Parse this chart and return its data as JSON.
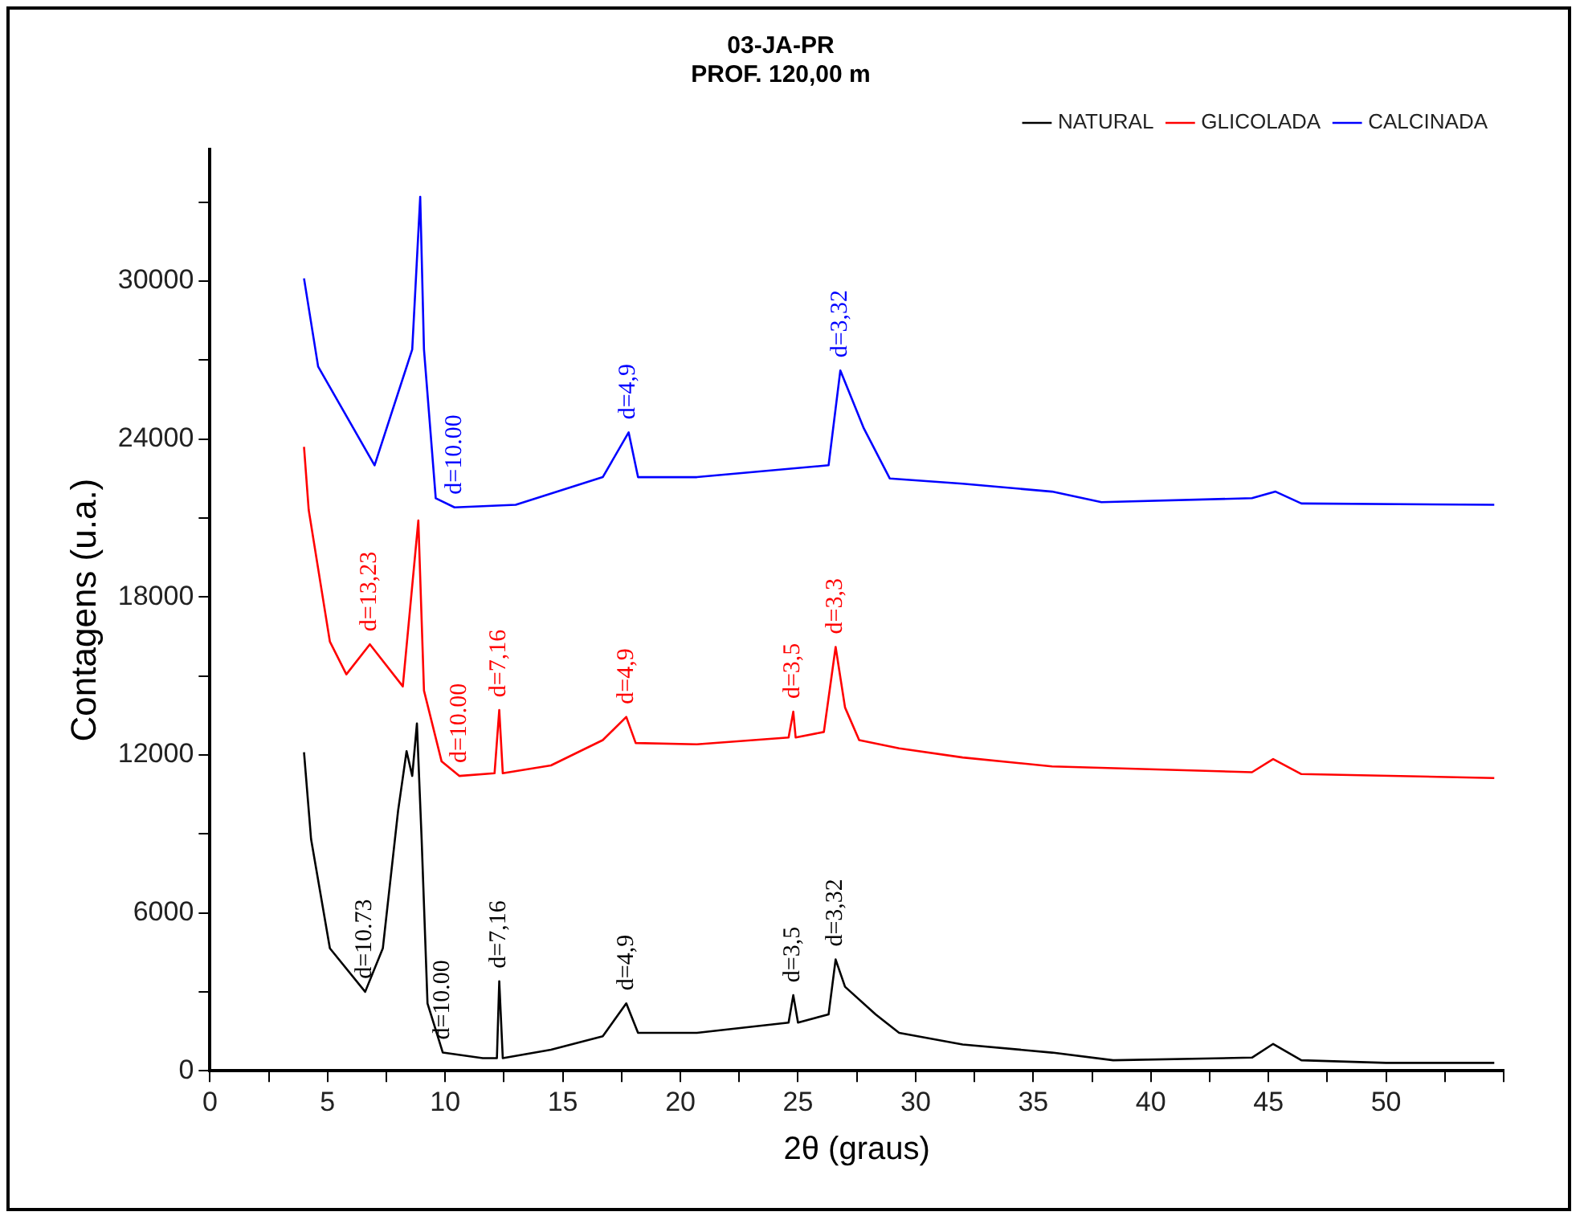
{
  "chart_data": {
    "type": "line",
    "title": "03-JA-PR\nPROF. 120,00 m",
    "xlabel": "2θ (graus)",
    "ylabel": "Contagens (u.a.)",
    "xlim": [
      0,
      55
    ],
    "xticks": [
      0,
      {
        "value": 2.5,
        "label": null
      },
      5,
      {
        "value": 7.5,
        "label": null
      },
      10,
      {
        "value": 12.5,
        "label": null
      },
      15,
      {
        "value": 17.5,
        "label": null
      },
      20,
      {
        "value": 22.5,
        "label": null
      },
      25,
      {
        "value": 27.5,
        "label": null
      },
      30,
      {
        "value": 32.5,
        "label": null
      },
      35,
      {
        "value": 37.5,
        "label": null
      },
      40,
      {
        "value": 42.5,
        "label": null
      },
      45,
      {
        "value": 47.5,
        "label": null
      },
      50,
      {
        "value": 52.5,
        "label": null
      },
      {
        "value": 55,
        "label": null
      }
    ],
    "ylim": [
      0,
      35000
    ],
    "yticks": [
      0,
      {
        "value": 3000,
        "label": null
      },
      6000,
      {
        "value": 9000,
        "label": null
      },
      12000,
      {
        "value": 15000,
        "label": null
      },
      18000,
      {
        "value": 21000,
        "label": null
      },
      24000,
      {
        "value": 27000,
        "label": null
      },
      30000,
      {
        "value": 33000,
        "label": null
      }
    ],
    "legend": "top right",
    "marker": "none",
    "line_style": "solid",
    "series": [
      {
        "name": "NATURAL",
        "color": "#000000",
        "x": [
          4.0,
          4.3,
          5.1,
          6.6,
          7.35,
          8.0,
          8.36,
          8.6,
          8.8,
          9.0,
          9.25,
          9.9,
          11.6,
          12.2,
          12.3,
          12.45,
          14.5,
          16.7,
          17.7,
          18.2,
          20.7,
          24.6,
          24.8,
          25.0,
          26.3,
          26.6,
          27.0,
          28.3,
          29.3,
          32,
          35.8,
          38.4,
          44.3,
          45.2,
          46.4,
          50,
          54.6
        ],
        "values": [
          12100,
          8800,
          4650,
          3000,
          4650,
          9880,
          12140,
          11200,
          13190,
          8800,
          2560,
          690,
          480,
          480,
          3400,
          480,
          800,
          1310,
          2560,
          1440,
          1440,
          1830,
          2870,
          1830,
          2140,
          4230,
          3190,
          2140,
          1440,
          1000,
          690,
          400,
          500,
          1020,
          400,
          300,
          300
        ]
      },
      {
        "name": "GLICOLADA",
        "color": "#ff0000",
        "x": [
          4.0,
          4.2,
          5.1,
          5.8,
          6.8,
          8.2,
          8.86,
          9.1,
          9.85,
          10.6,
          12.1,
          12.3,
          12.45,
          14.5,
          16.7,
          17.7,
          18.1,
          20.7,
          24.6,
          24.8,
          24.9,
          26.1,
          26.6,
          27.0,
          27.6,
          29.3,
          32,
          35.8,
          44.3,
          45.2,
          46.4,
          54.6
        ],
        "values": [
          23700,
          21300,
          16300,
          15060,
          16200,
          14600,
          20900,
          14440,
          11750,
          11200,
          11300,
          13700,
          11300,
          11600,
          12560,
          13440,
          12450,
          12400,
          12660,
          13640,
          12660,
          12870,
          16100,
          13800,
          12560,
          12250,
          11900,
          11560,
          11340,
          11840,
          11270,
          11120
        ]
      },
      {
        "name": "CALCINADA",
        "color": "#0000ff",
        "x": [
          4.0,
          4.6,
          7.0,
          8.6,
          8.94,
          9.1,
          9.6,
          10.4,
          13,
          16.7,
          17.8,
          18.2,
          20.7,
          26.3,
          26.8,
          27.8,
          28.9,
          32,
          35.8,
          37.9,
          44.3,
          45.3,
          46.4,
          54.6
        ],
        "values": [
          30100,
          26750,
          23000,
          27400,
          33200,
          27400,
          21750,
          21400,
          21500,
          22550,
          24250,
          22550,
          22550,
          23000,
          26600,
          24400,
          22500,
          22300,
          22000,
          21600,
          21750,
          22000,
          21550,
          21500
        ]
      }
    ],
    "annotations": [
      {
        "text": "d=10.00",
        "x": 10.4,
        "y": 21400
      },
      {
        "text": "d=4,9",
        "x": 17.8,
        "y": 24250
      },
      {
        "text": "d=3,32",
        "x": 26.8,
        "y": 26600
      },
      {
        "text": "d=13,23",
        "x": 6.8,
        "y": 16200
      },
      {
        "text": "d=10.00",
        "x": 10.6,
        "y": 11200
      },
      {
        "text": "d=7,16",
        "x": 12.3,
        "y": 13700
      },
      {
        "text": "d=4,9",
        "x": 17.7,
        "y": 13440
      },
      {
        "text": "d=3,5",
        "x": 24.8,
        "y": 13640
      },
      {
        "text": "d=3,3",
        "x": 26.6,
        "y": 16100
      },
      {
        "text": "d=10.73",
        "x": 6.6,
        "y": 3000
      },
      {
        "text": "d=10.00",
        "x": 9.9,
        "y": 690
      },
      {
        "text": "d=7,16",
        "x": 12.3,
        "y": 3400
      },
      {
        "text": "d=4,9",
        "x": 17.7,
        "y": 2560
      },
      {
        "text": "d=3,5",
        "x": 24.8,
        "y": 2870
      },
      {
        "text": "d=3,32",
        "x": 26.6,
        "y": 4230
      }
    ]
  }
}
